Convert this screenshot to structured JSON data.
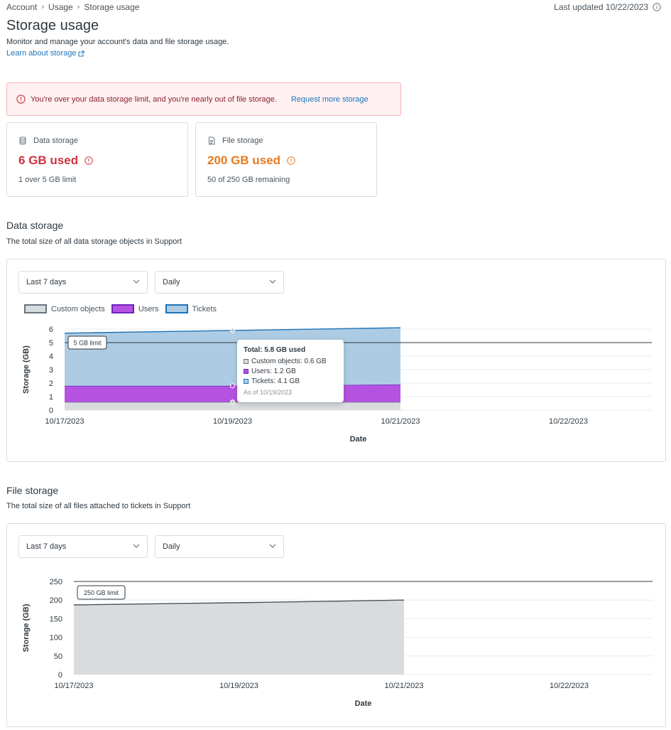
{
  "breadcrumb": [
    "Account",
    "Usage",
    "Storage usage"
  ],
  "last_updated": "Last updated 10/22/2023",
  "page_title": "Storage usage",
  "page_description": "Monitor and manage your account's data and file storage usage.",
  "learn_link": "Learn about storage",
  "alert": {
    "message": "You're over your data storage limit, and you're nearly out of file storage.",
    "action": "Request more storage"
  },
  "cards": {
    "data": {
      "label": "Data storage",
      "value": "6 GB used",
      "sub": "1 over 5 GB limit",
      "color": "#cc3340"
    },
    "file": {
      "label": "File storage",
      "value": "200 GB used",
      "sub": "50 of 250 GB remaining",
      "color": "#e77a1f"
    }
  },
  "data_section": {
    "title": "Data storage",
    "description": "The total size of all data storage objects in Support",
    "range_select": "Last 7 days",
    "interval_select": "Daily",
    "legend": [
      {
        "name": "Custom objects",
        "fill": "#d8dcde",
        "stroke": "#68737d"
      },
      {
        "name": "Users",
        "fill": "#b552e2",
        "stroke": "#6a27b8"
      },
      {
        "name": "Tickets",
        "fill": "#adcce4",
        "stroke": "#1f73b7"
      }
    ],
    "limit_label": "5 GB limit",
    "tooltip": {
      "title": "Total: 5.8 GB used",
      "rows": [
        "Custom objects: 0.6 GB",
        "Users: 1.2 GB",
        "Tickets: 4.1 GB"
      ],
      "footer": "As of 10/19/2023"
    }
  },
  "file_section": {
    "title": "File storage",
    "description": "The total size of all files attached to tickets in Support",
    "range_select": "Last 7 days",
    "interval_select": "Daily",
    "limit_label": "250 GB limit"
  },
  "chart_data": [
    {
      "type": "area",
      "stacked": true,
      "xlabel": "Date",
      "ylabel": "Storage (GB)",
      "x_ticks": [
        "10/17/2023",
        "10/19/2023",
        "10/21/2023",
        "10/22/2023"
      ],
      "x": [
        "10/17/2023",
        "10/19/2023",
        "10/21/2023"
      ],
      "ylim": [
        0,
        6
      ],
      "y_ticks": [
        0,
        1,
        2,
        3,
        4,
        5,
        6
      ],
      "limit": 5,
      "series": [
        {
          "name": "Custom objects",
          "values": [
            0.6,
            0.6,
            0.6
          ]
        },
        {
          "name": "Users",
          "values": [
            1.2,
            1.2,
            1.3
          ]
        },
        {
          "name": "Tickets",
          "values": [
            3.9,
            4.1,
            4.2
          ]
        }
      ]
    },
    {
      "type": "area",
      "xlabel": "Date",
      "ylabel": "Storage (GB)",
      "x_ticks": [
        "10/17/2023",
        "10/19/2023",
        "10/21/2023",
        "10/22/2023"
      ],
      "x": [
        "10/17/2023",
        "10/19/2023",
        "10/21/2023"
      ],
      "ylim": [
        0,
        250
      ],
      "y_ticks": [
        0,
        50,
        100,
        150,
        200,
        250
      ],
      "limit": 250,
      "series": [
        {
          "values": [
            187,
            193,
            200
          ]
        }
      ]
    }
  ]
}
